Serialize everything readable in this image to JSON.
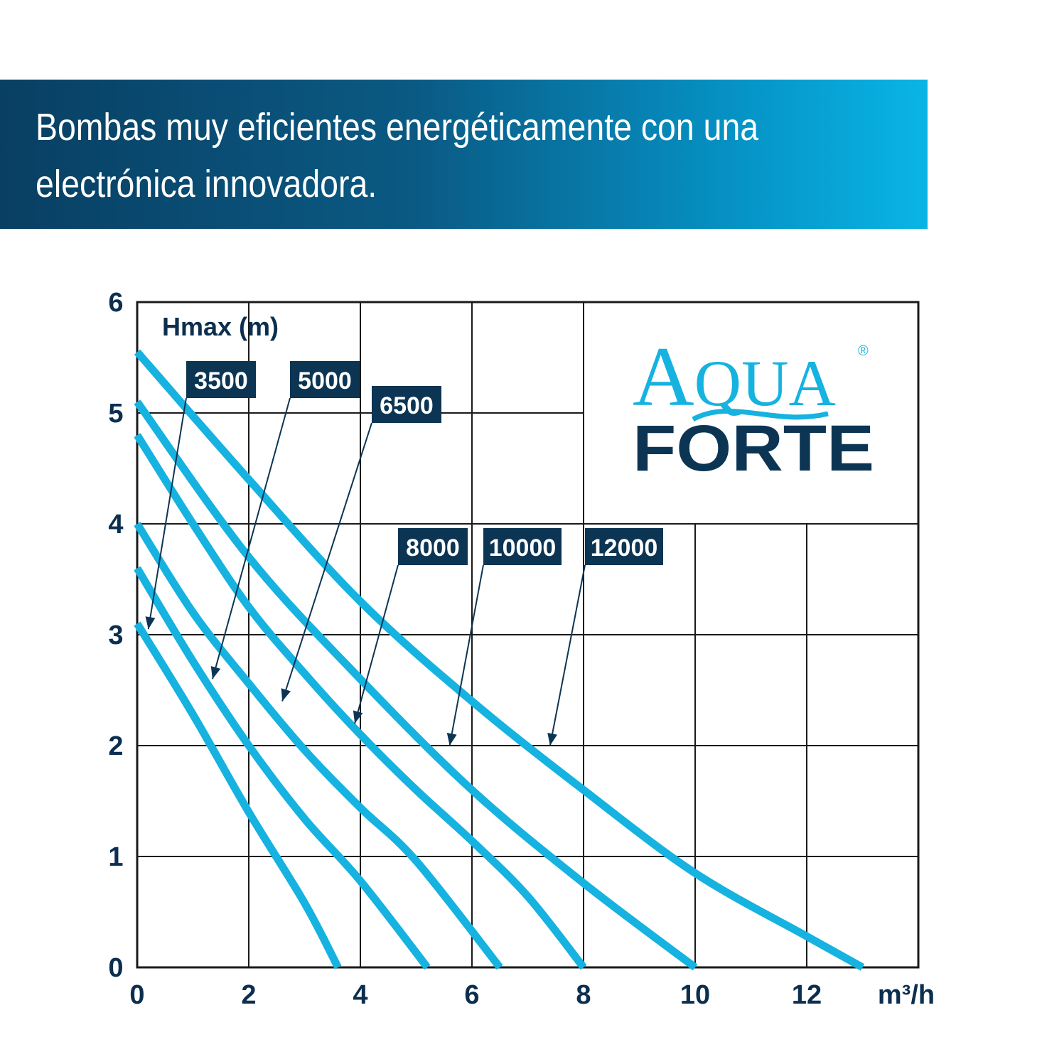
{
  "headline": {
    "line1": "Bombas muy eficientes energéticamente con una",
    "line2": "electrónica innovadora."
  },
  "logo": {
    "aqua": "AQUA",
    "forte": "FORTE",
    "registered": "®",
    "colors": {
      "aqua": "#16b2e0",
      "forte": "#0c3554"
    }
  },
  "colors": {
    "banner_dark": "#093f63",
    "banner_light": "#09b5e5",
    "curve": "#16b2e0",
    "tag_background": "#0c3554",
    "axis_text": "#0c2f4f",
    "grid": "#1a1a1a"
  },
  "chart_data": {
    "type": "line",
    "title": "",
    "xlabel": "m³/h",
    "ylabel": "Hmax (m)",
    "xlim": [
      0,
      14
    ],
    "ylim": [
      0,
      6
    ],
    "xticks": [
      "0",
      "2",
      "4",
      "6",
      "8",
      "10",
      "12"
    ],
    "yticks": [
      "0",
      "1",
      "2",
      "3",
      "4",
      "5",
      "6"
    ],
    "grid": true,
    "series": [
      {
        "name": "3500",
        "x": [
          0,
          1,
          2,
          3,
          3.6
        ],
        "y": [
          3.1,
          2.28,
          1.4,
          0.58,
          0
        ]
      },
      {
        "name": "5000",
        "x": [
          0,
          1,
          2,
          3,
          4,
          5.2
        ],
        "y": [
          3.6,
          2.76,
          2.0,
          1.34,
          0.78,
          0
        ]
      },
      {
        "name": "6500",
        "x": [
          0,
          1,
          2,
          3,
          4,
          5,
          6.5
        ],
        "y": [
          4.0,
          3.2,
          2.56,
          1.96,
          1.44,
          0.96,
          0
        ]
      },
      {
        "name": "8000",
        "x": [
          0,
          1,
          2,
          3,
          4,
          5,
          6,
          7,
          8
        ],
        "y": [
          4.8,
          4.0,
          3.25,
          2.65,
          2.1,
          1.6,
          1.14,
          0.64,
          0
        ]
      },
      {
        "name": "10000",
        "x": [
          0,
          2,
          4,
          6,
          8,
          10
        ],
        "y": [
          5.1,
          3.7,
          2.6,
          1.6,
          0.76,
          0
        ]
      },
      {
        "name": "12000",
        "x": [
          0,
          2,
          4,
          6,
          8,
          10,
          12,
          13
        ],
        "y": [
          5.55,
          4.4,
          3.3,
          2.4,
          1.6,
          0.85,
          0.28,
          0
        ]
      }
    ],
    "annotations": [
      {
        "label": "3500",
        "points_to": [
          0.2,
          3.05
        ]
      },
      {
        "label": "5000",
        "points_to": [
          1.35,
          2.6
        ]
      },
      {
        "label": "6500",
        "points_to": [
          2.6,
          2.4
        ]
      },
      {
        "label": "8000",
        "points_to": [
          3.9,
          2.2
        ]
      },
      {
        "label": "10000",
        "points_to": [
          5.6,
          2.0
        ]
      },
      {
        "label": "12000",
        "points_to": [
          7.4,
          2.0
        ]
      }
    ]
  }
}
